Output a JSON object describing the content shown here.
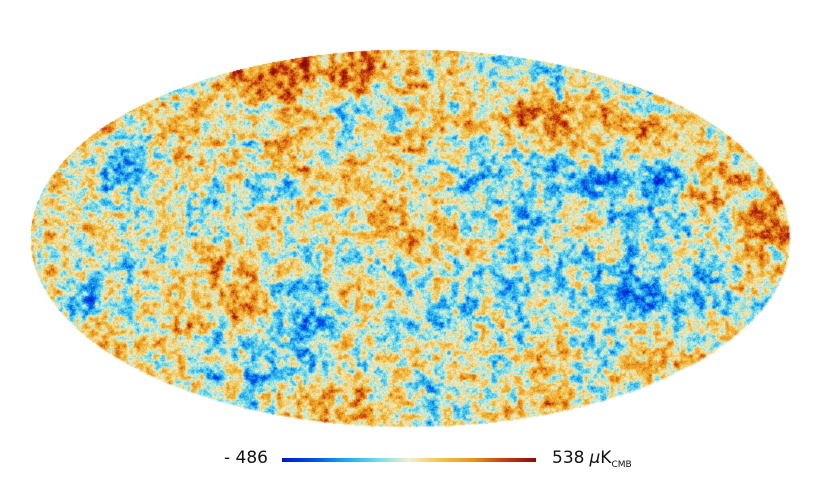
{
  "colorbar": {
    "min_label": "- 486",
    "max_value": "538",
    "unit_symbol": "μ",
    "unit_base": "K",
    "unit_sub": "CMB",
    "min_value": -486,
    "max_value_num": 538,
    "stops": [
      "#0018c8",
      "#0050e8",
      "#1aa8ee",
      "#6fdcec",
      "#f2f0d0",
      "#f3c247",
      "#e8961a",
      "#c83a10",
      "#8c0c0c"
    ]
  },
  "map": {
    "projection": "mollweide",
    "background_color": "#ffffff"
  }
}
